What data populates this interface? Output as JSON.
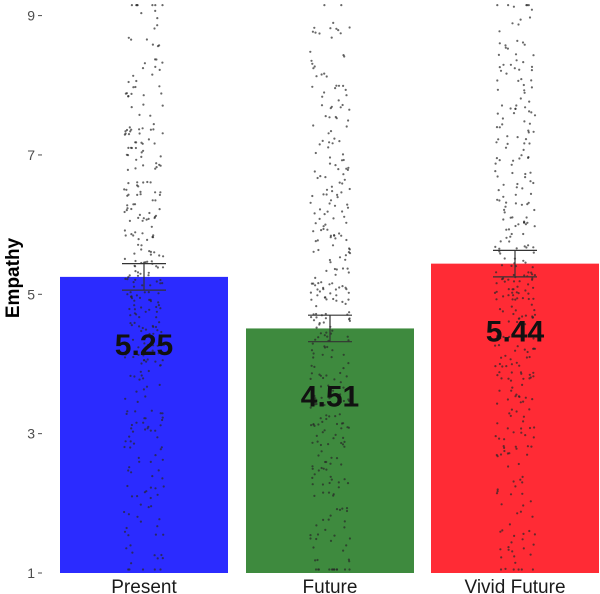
{
  "chart_data": {
    "type": "bar",
    "title": "",
    "xlabel": "",
    "ylabel": "Empathy",
    "ylim": [
      1,
      9.2
    ],
    "yticks": [
      1,
      3,
      5,
      7,
      9
    ],
    "categories": [
      "Present",
      "Future",
      "Vivid Future"
    ],
    "values": [
      5.25,
      4.51,
      5.44
    ],
    "value_labels": [
      "5.25",
      "4.51",
      "5.44"
    ],
    "error_bars": [
      {
        "lower": 5.06,
        "upper": 5.44
      },
      {
        "lower": 4.32,
        "upper": 4.7
      },
      {
        "lower": 5.25,
        "upper": 5.63
      }
    ],
    "colors": [
      "#2b2bff",
      "#3e8a3e",
      "#ff2b35"
    ],
    "jitter_points": "individual responses overlaid as grey dots, range 1-9",
    "grid": false
  }
}
